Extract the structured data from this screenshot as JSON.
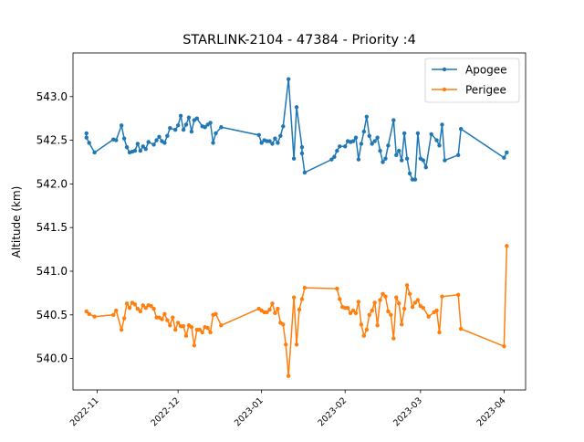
{
  "chart_data": {
    "type": "line",
    "title": "STARLINK-2104 - 47384 - Priority :4",
    "xlabel": "",
    "ylabel": "Altitude (km)",
    "grid": false,
    "legend_position": "top-right",
    "xlim": [
      "2022-10-23",
      "2023-04-09"
    ],
    "ylim": [
      539.64,
      543.5
    ],
    "x_ticks": [
      "2022-11",
      "2022-12",
      "2023-01",
      "2023-02",
      "2023-03",
      "2023-04"
    ],
    "x_tick_dates": [
      "2022-11-01",
      "2022-12-01",
      "2023-01-01",
      "2023-02-01",
      "2023-03-01",
      "2023-04-01"
    ],
    "y_ticks": [
      "540.0",
      "540.5",
      "541.0",
      "541.5",
      "542.0",
      "542.5",
      "543.0"
    ],
    "y_tick_values": [
      540.0,
      540.5,
      541.0,
      541.5,
      542.0,
      542.5,
      543.0
    ],
    "series": [
      {
        "name": "Apogee",
        "color": "#1f77b4",
        "points": [
          [
            "2022-10-28",
            542.58
          ],
          [
            "2022-10-28",
            542.53
          ],
          [
            "2022-10-29",
            542.47
          ],
          [
            "2022-10-31",
            542.36
          ],
          [
            "2022-11-07",
            542.51
          ],
          [
            "2022-11-08",
            542.5
          ],
          [
            "2022-11-10",
            542.67
          ],
          [
            "2022-11-11",
            542.52
          ],
          [
            "2022-11-12",
            542.42
          ],
          [
            "2022-11-13",
            542.36
          ],
          [
            "2022-11-14",
            542.37
          ],
          [
            "2022-11-15",
            542.38
          ],
          [
            "2022-11-16",
            542.46
          ],
          [
            "2022-11-17",
            542.38
          ],
          [
            "2022-11-18",
            542.43
          ],
          [
            "2022-11-19",
            542.4
          ],
          [
            "2022-11-20",
            542.48
          ],
          [
            "2022-11-22",
            542.45
          ],
          [
            "2022-11-23",
            542.5
          ],
          [
            "2022-11-24",
            542.54
          ],
          [
            "2022-11-25",
            542.49
          ],
          [
            "2022-11-26",
            542.47
          ],
          [
            "2022-11-27",
            542.55
          ],
          [
            "2022-11-28",
            542.64
          ],
          [
            "2022-11-30",
            542.62
          ],
          [
            "2022-12-01",
            542.67
          ],
          [
            "2022-12-02",
            542.78
          ],
          [
            "2022-12-03",
            542.62
          ],
          [
            "2022-12-04",
            542.68
          ],
          [
            "2022-12-05",
            542.76
          ],
          [
            "2022-12-06",
            542.6
          ],
          [
            "2022-12-07",
            542.73
          ],
          [
            "2022-12-08",
            542.75
          ],
          [
            "2022-12-10",
            542.66
          ],
          [
            "2022-12-11",
            542.65
          ],
          [
            "2022-12-12",
            542.68
          ],
          [
            "2022-12-13",
            542.7
          ],
          [
            "2022-12-14",
            542.47
          ],
          [
            "2022-12-15",
            542.58
          ],
          [
            "2022-12-17",
            542.65
          ],
          [
            "2022-12-31",
            542.56
          ],
          [
            "2023-01-01",
            542.47
          ],
          [
            "2023-01-02",
            542.5
          ],
          [
            "2023-01-03",
            542.49
          ],
          [
            "2023-01-04",
            542.49
          ],
          [
            "2023-01-05",
            542.46
          ],
          [
            "2023-01-06",
            542.52
          ],
          [
            "2023-01-07",
            542.47
          ],
          [
            "2023-01-08",
            542.55
          ],
          [
            "2023-01-09",
            542.66
          ],
          [
            "2023-01-11",
            543.2
          ],
          [
            "2023-01-13",
            542.29
          ],
          [
            "2023-01-14",
            542.88
          ],
          [
            "2023-01-16",
            542.42
          ],
          [
            "2023-01-16",
            542.35
          ],
          [
            "2023-01-17",
            542.13
          ],
          [
            "2023-01-27",
            542.28
          ],
          [
            "2023-01-28",
            542.31
          ],
          [
            "2023-01-29",
            542.38
          ],
          [
            "2023-01-30",
            542.43
          ],
          [
            "2023-02-01",
            542.43
          ],
          [
            "2023-02-02",
            542.49
          ],
          [
            "2023-02-03",
            542.48
          ],
          [
            "2023-02-04",
            542.49
          ],
          [
            "2023-02-05",
            542.53
          ],
          [
            "2023-02-06",
            542.28
          ],
          [
            "2023-02-07",
            542.46
          ],
          [
            "2023-02-08",
            542.6
          ],
          [
            "2023-02-09",
            542.77
          ],
          [
            "2023-02-10",
            542.55
          ],
          [
            "2023-02-11",
            542.46
          ],
          [
            "2023-02-12",
            542.49
          ],
          [
            "2023-02-13",
            542.53
          ],
          [
            "2023-02-14",
            542.38
          ],
          [
            "2023-02-15",
            542.25
          ],
          [
            "2023-02-16",
            542.29
          ],
          [
            "2023-02-17",
            542.44
          ],
          [
            "2023-02-19",
            542.73
          ],
          [
            "2023-02-20",
            542.33
          ],
          [
            "2023-02-21",
            542.38
          ],
          [
            "2023-02-22",
            542.27
          ],
          [
            "2023-02-23",
            542.58
          ],
          [
            "2023-02-24",
            542.29
          ],
          [
            "2023-02-25",
            542.12
          ],
          [
            "2023-02-26",
            542.05
          ],
          [
            "2023-02-27",
            542.05
          ],
          [
            "2023-02-28",
            542.58
          ],
          [
            "2023-03-01",
            542.29
          ],
          [
            "2023-03-02",
            542.27
          ],
          [
            "2023-03-03",
            542.19
          ],
          [
            "2023-03-05",
            542.57
          ],
          [
            "2023-03-07",
            542.5
          ],
          [
            "2023-03-08",
            542.44
          ],
          [
            "2023-03-09",
            542.68
          ],
          [
            "2023-03-10",
            542.27
          ],
          [
            "2023-03-15",
            542.33
          ],
          [
            "2023-03-16",
            542.63
          ],
          [
            "2023-04-01",
            542.3
          ],
          [
            "2023-04-02",
            542.36
          ]
        ]
      },
      {
        "name": "Perigee",
        "color": "#ff7f0e",
        "points": [
          [
            "2022-10-28",
            540.54
          ],
          [
            "2022-10-29",
            540.51
          ],
          [
            "2022-10-31",
            540.48
          ],
          [
            "2022-11-07",
            540.5
          ],
          [
            "2022-11-08",
            540.55
          ],
          [
            "2022-11-10",
            540.33
          ],
          [
            "2022-11-11",
            540.46
          ],
          [
            "2022-11-12",
            540.63
          ],
          [
            "2022-11-13",
            540.58
          ],
          [
            "2022-11-14",
            540.64
          ],
          [
            "2022-11-15",
            540.62
          ],
          [
            "2022-11-16",
            540.57
          ],
          [
            "2022-11-17",
            540.54
          ],
          [
            "2022-11-18",
            540.61
          ],
          [
            "2022-11-19",
            540.58
          ],
          [
            "2022-11-20",
            540.61
          ],
          [
            "2022-11-21",
            540.6
          ],
          [
            "2022-11-22",
            540.57
          ],
          [
            "2022-11-23",
            540.47
          ],
          [
            "2022-11-24",
            540.47
          ],
          [
            "2022-11-25",
            540.45
          ],
          [
            "2022-11-26",
            540.51
          ],
          [
            "2022-11-27",
            540.44
          ],
          [
            "2022-11-28",
            540.38
          ],
          [
            "2022-11-29",
            540.47
          ],
          [
            "2022-11-30",
            540.33
          ],
          [
            "2022-12-01",
            540.41
          ],
          [
            "2022-12-02",
            540.37
          ],
          [
            "2022-12-03",
            540.37
          ],
          [
            "2022-12-04",
            540.26
          ],
          [
            "2022-12-05",
            540.38
          ],
          [
            "2022-12-06",
            540.36
          ],
          [
            "2022-12-07",
            540.15
          ],
          [
            "2022-12-08",
            540.33
          ],
          [
            "2022-12-09",
            540.33
          ],
          [
            "2022-12-10",
            540.3
          ],
          [
            "2022-12-11",
            540.36
          ],
          [
            "2022-12-12",
            540.35
          ],
          [
            "2022-12-13",
            540.3
          ],
          [
            "2022-12-14",
            540.5
          ],
          [
            "2022-12-15",
            540.51
          ],
          [
            "2022-12-17",
            540.38
          ],
          [
            "2022-12-31",
            540.57
          ],
          [
            "2023-01-01",
            540.55
          ],
          [
            "2023-01-02",
            540.53
          ],
          [
            "2023-01-03",
            540.53
          ],
          [
            "2023-01-04",
            540.56
          ],
          [
            "2023-01-05",
            540.63
          ],
          [
            "2023-01-06",
            540.52
          ],
          [
            "2023-01-07",
            540.57
          ],
          [
            "2023-01-08",
            540.41
          ],
          [
            "2023-01-09",
            540.39
          ],
          [
            "2023-01-10",
            540.16
          ],
          [
            "2023-01-11",
            539.8
          ],
          [
            "2023-01-13",
            540.7
          ],
          [
            "2023-01-14",
            540.16
          ],
          [
            "2023-01-15",
            540.56
          ],
          [
            "2023-01-16",
            540.68
          ],
          [
            "2023-01-17",
            540.81
          ],
          [
            "2023-01-29",
            540.8
          ],
          [
            "2023-01-30",
            540.68
          ],
          [
            "2023-01-31",
            540.59
          ],
          [
            "2023-02-01",
            540.58
          ],
          [
            "2023-02-02",
            540.58
          ],
          [
            "2023-02-03",
            540.52
          ],
          [
            "2023-02-04",
            540.55
          ],
          [
            "2023-02-05",
            540.52
          ],
          [
            "2023-02-06",
            540.65
          ],
          [
            "2023-02-07",
            540.39
          ],
          [
            "2023-02-08",
            540.26
          ],
          [
            "2023-02-09",
            540.33
          ],
          [
            "2023-02-10",
            540.5
          ],
          [
            "2023-02-11",
            540.55
          ],
          [
            "2023-02-12",
            540.64
          ],
          [
            "2023-02-13",
            540.38
          ],
          [
            "2023-02-14",
            540.67
          ],
          [
            "2023-02-15",
            540.74
          ],
          [
            "2023-02-16",
            540.71
          ],
          [
            "2023-02-17",
            540.54
          ],
          [
            "2023-02-18",
            540.5
          ],
          [
            "2023-02-19",
            540.23
          ],
          [
            "2023-02-20",
            540.7
          ],
          [
            "2023-02-21",
            540.63
          ],
          [
            "2023-02-22",
            540.39
          ],
          [
            "2023-02-23",
            540.57
          ],
          [
            "2023-02-24",
            540.84
          ],
          [
            "2023-02-25",
            540.74
          ],
          [
            "2023-02-26",
            540.59
          ],
          [
            "2023-02-27",
            540.64
          ],
          [
            "2023-02-28",
            540.67
          ],
          [
            "2023-03-01",
            540.6
          ],
          [
            "2023-03-02",
            540.58
          ],
          [
            "2023-03-04",
            540.48
          ],
          [
            "2023-03-06",
            540.53
          ],
          [
            "2023-03-07",
            540.55
          ],
          [
            "2023-03-08",
            540.3
          ],
          [
            "2023-03-09",
            540.71
          ],
          [
            "2023-03-15",
            540.73
          ],
          [
            "2023-03-16",
            540.34
          ],
          [
            "2023-04-01",
            540.14
          ],
          [
            "2023-04-02",
            541.29
          ]
        ]
      }
    ]
  }
}
